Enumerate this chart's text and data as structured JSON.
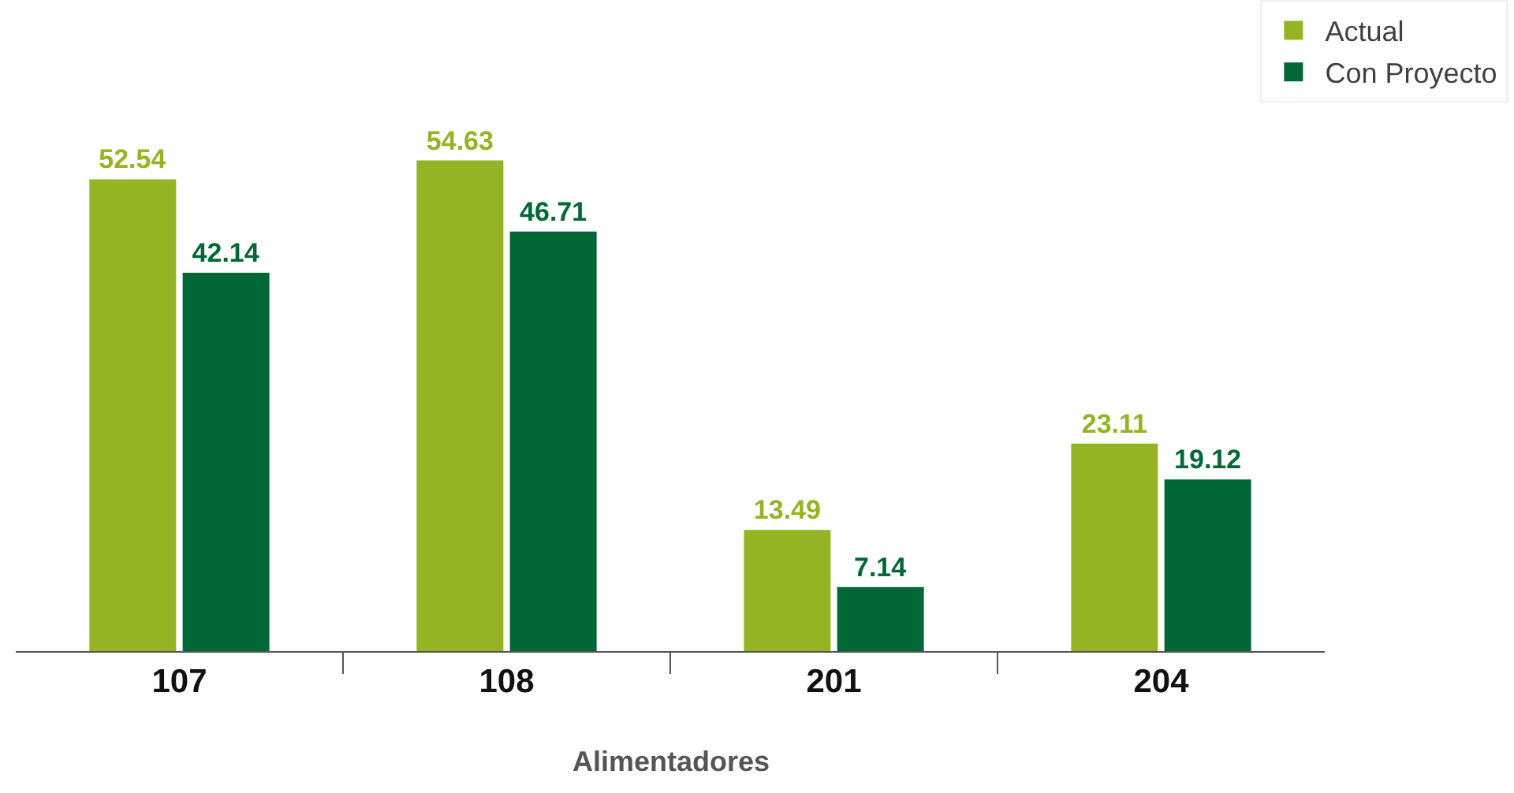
{
  "chart_data": {
    "type": "bar",
    "xlabel": "Alimentadores",
    "categories": [
      "107",
      "108",
      "201",
      "204"
    ],
    "series": [
      {
        "name": "Actual",
        "color": "#94b424",
        "values": [
          52.54,
          54.63,
          13.49,
          23.11
        ]
      },
      {
        "name": "Con Proyecto",
        "color": "#006837",
        "values": [
          42.14,
          46.71,
          7.14,
          19.12
        ]
      }
    ],
    "ylim": [
      0,
      72.5
    ],
    "data_labels": true,
    "legend": "top right",
    "tick_labels": "x"
  }
}
